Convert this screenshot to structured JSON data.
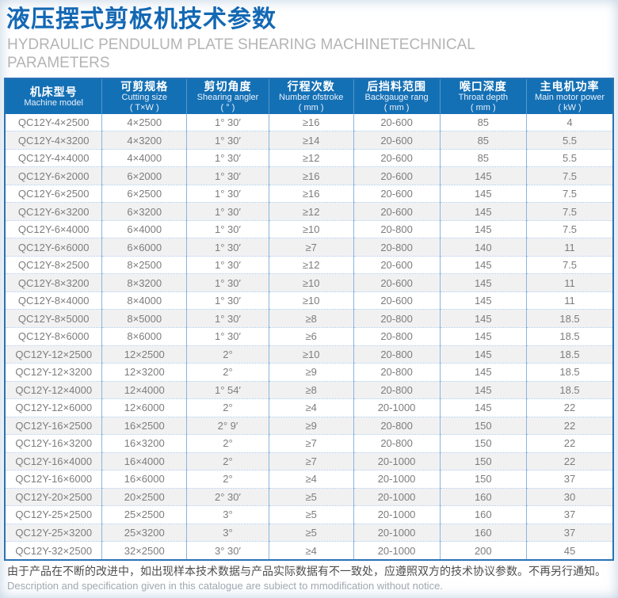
{
  "page": {
    "title": "液压摆式剪板机技术参数",
    "subtitle": "HYDRAULIC PENDULUM PLATE SHEARING MACHINETECHNICAL PARAMETERS"
  },
  "colors": {
    "accent_blue": "#1368b4",
    "header_bg": "#1470b5",
    "table_border": "#2a72b6",
    "grid_line": "#8ab4de",
    "row_alt_bg": "#f1f1f2"
  },
  "table": {
    "columns": [
      {
        "cn": "机床型号",
        "en": "Machine model",
        "unit": ""
      },
      {
        "cn": "可剪规格",
        "en": "Cutting size",
        "unit": "( T×W )"
      },
      {
        "cn": "剪切角度",
        "en": "Shearing angler",
        "unit": "( ° )"
      },
      {
        "cn": "行程次数",
        "en": "Number ofstroke",
        "unit": "( mm )"
      },
      {
        "cn": "后挡料范围",
        "en": "Backgauge rang",
        "unit": "( mm )"
      },
      {
        "cn": "喉口深度",
        "en": "Throat depth",
        "unit": "( mm )"
      },
      {
        "cn": "主电机功率",
        "en": "Main motor power",
        "unit": "( kW )"
      }
    ],
    "rows": [
      [
        "QC12Y-4×2500",
        "4×2500",
        "1° 30′",
        "≥16",
        "20-600",
        "85",
        "4"
      ],
      [
        "QC12Y-4×3200",
        "4×3200",
        "1° 30′",
        "≥14",
        "20-600",
        "85",
        "5.5"
      ],
      [
        "QC12Y-4×4000",
        "4×4000",
        "1° 30′",
        "≥12",
        "20-600",
        "85",
        "5.5"
      ],
      [
        "QC12Y-6×2000",
        "6×2000",
        "1° 30′",
        "≥16",
        "20-600",
        "145",
        "7.5"
      ],
      [
        "QC12Y-6×2500",
        "6×2500",
        "1° 30′",
        "≥16",
        "20-600",
        "145",
        "7.5"
      ],
      [
        "QC12Y-6×3200",
        "6×3200",
        "1° 30′",
        "≥12",
        "20-600",
        "145",
        "7.5"
      ],
      [
        "QC12Y-6×4000",
        "6×4000",
        "1° 30′",
        "≥10",
        "20-800",
        "145",
        "7.5"
      ],
      [
        "QC12Y-6×6000",
        "6×6000",
        "1° 30′",
        "≥7",
        "20-800",
        "140",
        "11"
      ],
      [
        "QC12Y-8×2500",
        "8×2500",
        "1° 30′",
        "≥12",
        "20-600",
        "145",
        "7.5"
      ],
      [
        "QC12Y-8×3200",
        "8×3200",
        "1° 30′",
        "≥10",
        "20-600",
        "145",
        "11"
      ],
      [
        "QC12Y-8×4000",
        "8×4000",
        "1° 30′",
        "≥10",
        "20-600",
        "145",
        "11"
      ],
      [
        "QC12Y-8×5000",
        "8×5000",
        "1° 30′",
        "≥8",
        "20-800",
        "145",
        "18.5"
      ],
      [
        "QC12Y-8×6000",
        "8×6000",
        "1° 30′",
        "≥6",
        "20-800",
        "145",
        "18.5"
      ],
      [
        "QC12Y-12×2500",
        "12×2500",
        "2°",
        "≥10",
        "20-800",
        "145",
        "18.5"
      ],
      [
        "QC12Y-12×3200",
        "12×3200",
        "2°",
        "≥9",
        "20-800",
        "145",
        "18.5"
      ],
      [
        "QC12Y-12×4000",
        "12×4000",
        "1° 54′",
        "≥8",
        "20-800",
        "145",
        "18.5"
      ],
      [
        "QC12Y-12×6000",
        "12×6000",
        "2°",
        "≥4",
        "20-1000",
        "145",
        "22"
      ],
      [
        "QC12Y-16×2500",
        "16×2500",
        "2° 9′",
        "≥9",
        "20-800",
        "150",
        "22"
      ],
      [
        "QC12Y-16×3200",
        "16×3200",
        "2°",
        "≥7",
        "20-800",
        "150",
        "22"
      ],
      [
        "QC12Y-16×4000",
        "16×4000",
        "2°",
        "≥7",
        "20-1000",
        "150",
        "22"
      ],
      [
        "QC12Y-16×6000",
        "16×6000",
        "2°",
        "≥4",
        "20-1000",
        "150",
        "37"
      ],
      [
        "QC12Y-20×2500",
        "20×2500",
        "2° 30′",
        "≥5",
        "20-1000",
        "160",
        "30"
      ],
      [
        "QC12Y-25×2500",
        "25×2500",
        "3°",
        "≥5",
        "20-1000",
        "160",
        "37"
      ],
      [
        "QC12Y-25×3200",
        "25×3200",
        "3°",
        "≥5",
        "20-1000",
        "160",
        "37"
      ],
      [
        "QC12Y-32×2500",
        "32×2500",
        "3° 30′",
        "≥4",
        "20-1000",
        "200",
        "45"
      ]
    ]
  },
  "footer": {
    "cn": "由于产品在不断的改进中，如出现样本技术数据与产品实际数据有不一致处，应遵照双方的技术协议参数。不再另行通知。",
    "en": "Description and specification given in this catalogue are subiect to mmodification without notice."
  }
}
